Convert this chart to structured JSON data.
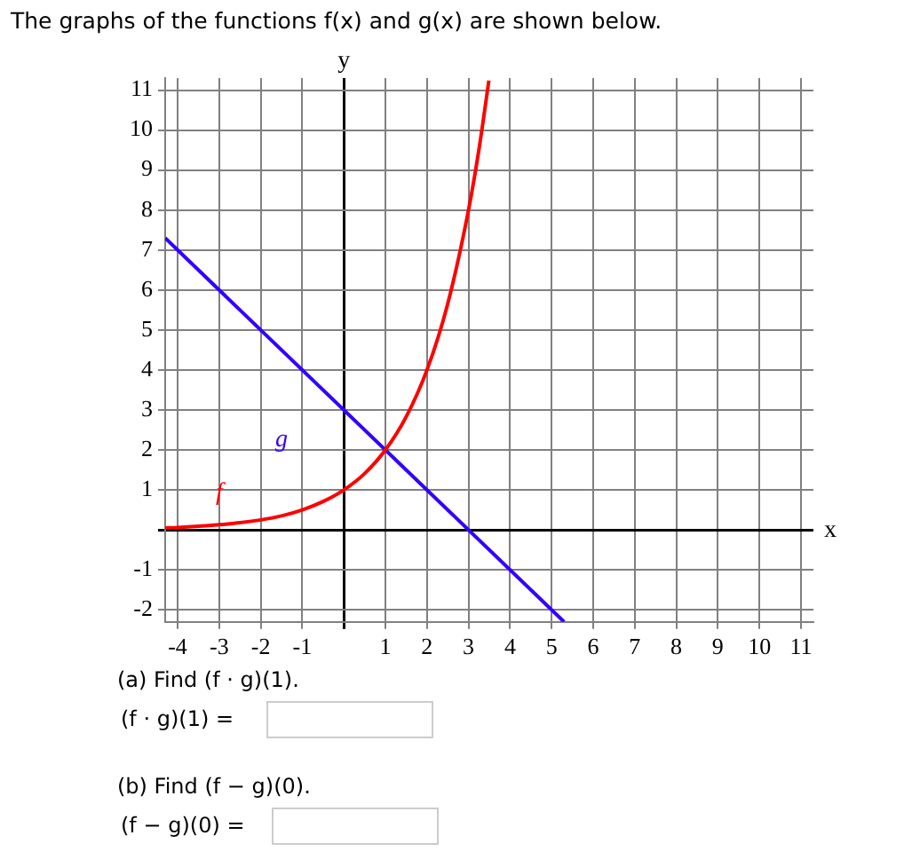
{
  "chart_data": {
    "type": "line",
    "title": "The graphs of the functions f(x) and g(x) are shown below.",
    "xlabel": "x",
    "ylabel": "y",
    "series": [
      {
        "name": "f",
        "color": "#ff0000",
        "x": [
          -4.3,
          -4,
          -3.5,
          -3,
          -2.5,
          -2,
          -1.5,
          -1,
          -0.5,
          0,
          0.5,
          1,
          1.5,
          2,
          2.5,
          3,
          3.25,
          3.49
        ],
        "values": [
          0.05,
          0.06,
          0.09,
          0.13,
          0.18,
          0.25,
          0.35,
          0.5,
          0.71,
          1,
          1.41,
          2,
          2.83,
          4,
          5.66,
          8,
          9.51,
          11.24
        ]
      },
      {
        "name": "g",
        "color": "#3300ff",
        "x": [
          -4.3,
          5.3
        ],
        "values": [
          7.3,
          -2.3
        ]
      }
    ],
    "xlim": [
      -4.3,
      11.3
    ],
    "ylim": [
      -2.3,
      11.3
    ],
    "xticks": [
      -4,
      -3,
      -2,
      -1,
      {
        "value": 0,
        "label": null
      },
      1,
      2,
      3,
      4,
      5,
      6,
      7,
      8,
      9,
      10,
      11
    ],
    "yticks": [
      -2,
      -1,
      {
        "value": 0,
        "label": null
      },
      1,
      2,
      3,
      4,
      5,
      6,
      7,
      8,
      9,
      10,
      11
    ],
    "grid": true,
    "legend": false,
    "marker": "none",
    "line_style": "solid",
    "annotations": [
      "(a) Find (f · g)(1).",
      "(f · g)(1) =",
      "(b) Find (f − g)(0).",
      "(f − g)(0) ="
    ]
  }
}
